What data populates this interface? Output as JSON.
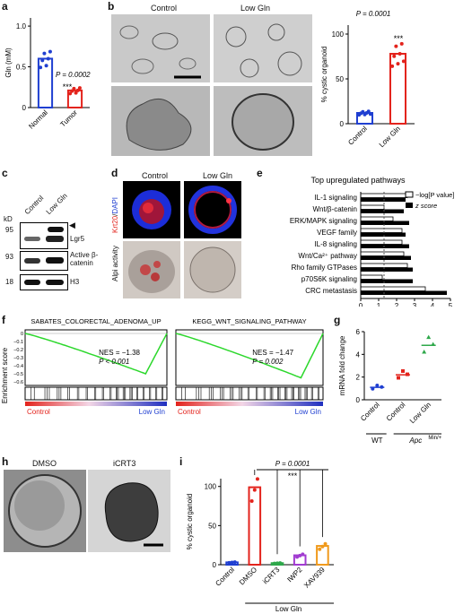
{
  "panel_labels": {
    "a": "a",
    "b": "b",
    "c": "c",
    "d": "d",
    "e": "e",
    "f": "f",
    "g": "g",
    "h": "h",
    "i": "i"
  },
  "panel_a": {
    "ylabel": "Gln (mM)",
    "pvalue": "P = 0.0002",
    "stars": "***",
    "yticks": [
      "0",
      "0.5",
      "1.0"
    ],
    "categories": [
      "Normal",
      "Tumor"
    ]
  },
  "panel_b": {
    "control_label": "Control",
    "lowgln_label": "Low Gln",
    "pvalue": "P = 0.0001",
    "stars": "***",
    "ylabel": "% cystic organoid",
    "yticks": [
      "0",
      "50",
      "100"
    ],
    "categories": [
      "Control",
      "Low Gln"
    ]
  },
  "panel_c": {
    "kd": "kD",
    "lanes": [
      "Control",
      "Low Gln"
    ],
    "rows": [
      {
        "mw": "95",
        "label": "Lgr5"
      },
      {
        "mw": "93",
        "label": "Active β-catenin"
      },
      {
        "mw": "18",
        "label": "H3"
      }
    ]
  },
  "panel_d": {
    "control_label": "Control",
    "lowgln_label": "Low Gln",
    "stain_krt": "Krt20",
    "stain_dapi": "DAPI",
    "alpi": "Alpi activity"
  },
  "panel_e": {
    "title": "Top upregulated pathways",
    "legend_log": "−log[P value]",
    "legend_z": "z score",
    "xticks": [
      "0",
      "1",
      "2",
      "3",
      "4",
      "5"
    ]
  },
  "panel_f": {
    "gsea1_title": "SABATES_COLORECTAL_ADENOMA_UP",
    "gsea1_nes": "NES = −1.38",
    "gsea1_p": "P < 0.001",
    "gsea2_title": "KEGG_WNT_SIGNALING_PATHWAY",
    "gsea2_nes": "NES = −1.47",
    "gsea2_p": "P = 0.002",
    "ylabel": "Enrichment score",
    "yticks": [
      "0",
      "−0.1",
      "−0.2",
      "−0.3",
      "−0.4",
      "−0.5",
      "−0.6"
    ],
    "left_label": "Control",
    "right_label": "Low Gln"
  },
  "panel_g": {
    "ylabel": "mRNA fold change",
    "yticks": [
      "0",
      "2",
      "4",
      "6"
    ],
    "categories": [
      "Control",
      "Control",
      "Low Gln"
    ],
    "group_wt": "WT",
    "group_apc": "Apc",
    "group_apc_sup": "Min/+"
  },
  "panel_h": {
    "dmso": "DMSO",
    "icrt3": "iCRT3"
  },
  "panel_i": {
    "pvalue": "P = 0.0001",
    "stars": "***",
    "ylabel": "% cystic organoid",
    "yticks": [
      "0",
      "50",
      "100"
    ],
    "categories": [
      "Control",
      "DMSO",
      "iCRT3",
      "IWP2",
      "XAV939"
    ],
    "group_label": "Low Gln"
  },
  "chart_data": [
    {
      "type": "bar",
      "panel": "a",
      "categories": [
        "Normal",
        "Tumor"
      ],
      "values": [
        0.6,
        0.21
      ],
      "ylim": [
        0,
        1.1
      ],
      "ylabel": "Gln (mM)",
      "colors": [
        "#1f3fd1",
        "#e3231c"
      ]
    },
    {
      "type": "bar",
      "panel": "b",
      "categories": [
        "Control",
        "Low Gln"
      ],
      "values": [
        12,
        78
      ],
      "ylim": [
        0,
        110
      ],
      "ylabel": "% cystic organoid",
      "colors": [
        "#1f3fd1",
        "#e3231c"
      ]
    },
    {
      "type": "bar",
      "panel": "e",
      "orientation": "horizontal",
      "categories": [
        "IL-1 signaling",
        "Wnt/β-catenin",
        "ERK/MAPK signaling",
        "VEGF family",
        "IL-8 signaling",
        "Wnt/Ca²⁺ pathway",
        "Rho family GTPases",
        "p70S6K signaling",
        "CRC metastasis"
      ],
      "series": [
        {
          "name": "−log[P value]",
          "values": [
            2.6,
            1.3,
            1.8,
            2.3,
            2.3,
            2.4,
            2.6,
            1.2,
            3.6
          ]
        },
        {
          "name": "z score",
          "values": [
            2.5,
            2.4,
            2.7,
            2.5,
            2.7,
            2.8,
            2.9,
            2.9,
            4.8
          ]
        }
      ],
      "xlim": [
        0,
        5
      ]
    },
    {
      "type": "scatter",
      "panel": "g",
      "categories": [
        "Control",
        "Control",
        "Low Gln"
      ],
      "values": [
        1.1,
        2.2,
        4.8
      ],
      "ylim": [
        0,
        6
      ],
      "ylabel": "mRNA fold change",
      "colors": [
        "#1f3fd1",
        "#e3231c",
        "#2ea84a"
      ]
    },
    {
      "type": "bar",
      "panel": "i",
      "categories": [
        "Control",
        "DMSO",
        "iCRT3",
        "IWP2",
        "XAV939"
      ],
      "values": [
        3,
        99,
        2,
        12,
        24
      ],
      "ylim": [
        0,
        110
      ],
      "ylabel": "% cystic organoid",
      "colors": [
        "#1f3fd1",
        "#e3231c",
        "#2ea84a",
        "#a13bd1",
        "#f09a1c"
      ]
    }
  ]
}
